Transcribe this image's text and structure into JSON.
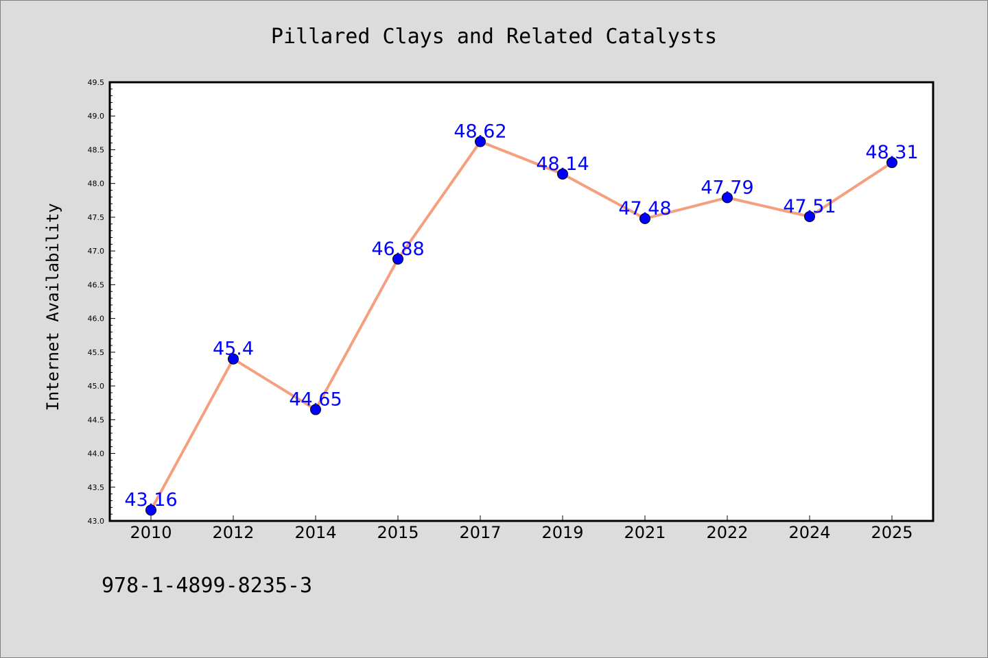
{
  "chart_data": {
    "type": "line",
    "title": "Pillared Clays and Related Catalysts",
    "xlabel": "",
    "ylabel": "Internet Availability",
    "categories": [
      "2010",
      "2012",
      "2014",
      "2015",
      "2017",
      "2019",
      "2021",
      "2022",
      "2024",
      "2025"
    ],
    "series": [
      {
        "values": [
          43.16,
          45.4,
          44.65,
          46.88,
          48.62,
          48.14,
          47.48,
          47.79,
          47.51,
          48.31
        ],
        "labels": [
          "43.16",
          "45.4",
          "44.65",
          "46.88",
          "48.62",
          "48.14",
          "47.48",
          "47.79",
          "47.51",
          "48.31"
        ]
      }
    ],
    "ylim": [
      43.0,
      49.5
    ],
    "yticks": [
      "43.0",
      "43.5",
      "44.0",
      "44.5",
      "45.0",
      "45.5",
      "46.0",
      "46.5",
      "47.0",
      "47.5",
      "48.0",
      "48.5",
      "49.0",
      "49.5"
    ],
    "grid": false,
    "legend": "none",
    "colors": {
      "line": "#f4a07e",
      "marker": "#0000ff",
      "label": "#0000ff",
      "background": "#dcdcdc",
      "plot_bg": "#ffffff"
    }
  },
  "footer_text": "978-1-4899-8235-3"
}
